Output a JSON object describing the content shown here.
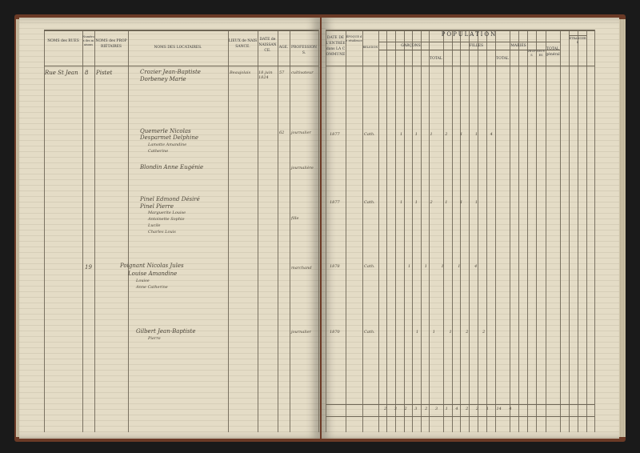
{
  "left_page": {
    "headers": {
      "rues": "NOMS des RUES",
      "maisons": "Numéros des maisons",
      "proprietaires": "NOMS des PROPRIÉTAIRES",
      "locataires": "NOMS DES LOCATAIRES.",
      "lieux": "LIEUX de NAISSANCE.",
      "date": "DATE de NAISSANCE.",
      "age": "AGE.",
      "professions": "PROFESSIONS."
    },
    "entries": [
      {
        "rue": "Rue St Jean",
        "no": "8",
        "proprietaire": "Pistet",
        "locataires": [
          "Crozier Jean-Baptiste",
          "Dorbeney Marie"
        ],
        "lieu": "Beaujolais",
        "date": "18 juin 1824",
        "age": "57",
        "profession": "cultivateur"
      },
      {
        "proprietaire": "Quemerle",
        "locataires": [
          "Quemerle Nicolas",
          "Desparmet Delphine",
          "Lamotte Amandine",
          "Catherine"
        ],
        "age": "62",
        "profession": "journalier"
      },
      {
        "proprietaire": "Blondin",
        "locataires": [
          "Blondin Anne Eugénie"
        ],
        "profession": "journalière"
      },
      {
        "proprietaire": "Pinel",
        "locataires": [
          "Pinel Edmond Désiré",
          "Pinel Pierre",
          "Marguerite Louise",
          "Antoinette Sophie",
          "Lucile",
          "Charles Louis"
        ],
        "profession": "fille"
      },
      {
        "no": "19",
        "proprietaire": "Poignant",
        "locataires": [
          "Poignant Nicolas Jules",
          "Louise Amandine",
          "Louise",
          "Anne Catherine"
        ],
        "profession": "marchand"
      },
      {
        "proprietaire": "Gilbert",
        "locataires": [
          "Gilbert Jean-Baptiste",
          "Pierre"
        ],
        "profession": "journalier"
      }
    ]
  },
  "right_page": {
    "headers": {
      "date_entree": "DATE DE L'ENTRÉE dans LA COMMUNE",
      "residence": "ÉPOQUE de résidence",
      "religion": "RELIGION",
      "population": "POPULATION",
      "garcons": "GARÇONS",
      "total_g": "TOTAL",
      "filles": "FILLES",
      "total_f": "TOTAL",
      "maries": "MARIÉS",
      "veufs": "VEUFS",
      "veuves": "VEUVES",
      "total_general": "TOTAL général",
      "etrangers": "ÉTRANGERS"
    },
    "entries": [
      {
        "date": "1877",
        "religion": "Cath.",
        "marks": "1  1  1  2  1  1  4"
      },
      {
        "date": "1877",
        "religion": "Cath.",
        "marks": "1  1  2  1  1  1"
      },
      {
        "date": "1878",
        "religion": "Cath.",
        "marks": "1  1  1  1  4"
      },
      {
        "date": "1870",
        "religion": "Cath.",
        "marks": "1  1  1  2  2"
      }
    ],
    "totals": "2 3 2  3  2 3 1  4 2 2  1  14  4"
  }
}
